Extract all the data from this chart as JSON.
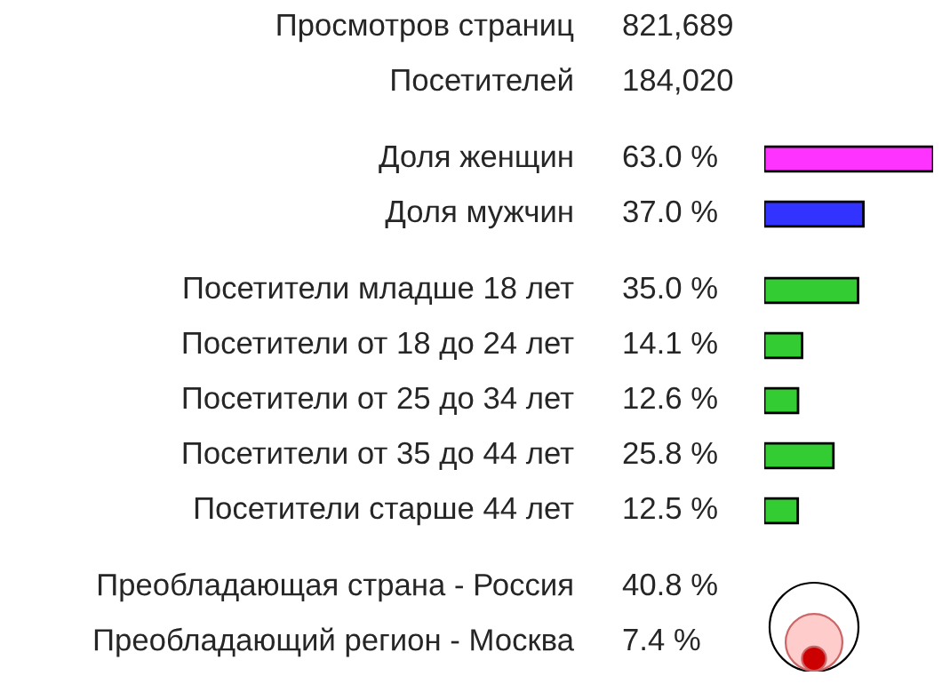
{
  "chart_data": [
    {
      "type": "other",
      "categories": [
        "Просмотров страниц",
        "Посетителей"
      ],
      "value_labels": [
        "821,689",
        "184,020"
      ]
    },
    {
      "type": "bar",
      "orientation": "horizontal",
      "categories": [
        "Доля женщин",
        "Доля мужчин"
      ],
      "values": [
        63.0,
        37.0
      ],
      "colors": [
        "#ff33ff",
        "#3333ff"
      ],
      "value_labels": [
        "63.0 %",
        "37.0 %"
      ]
    },
    {
      "type": "bar",
      "orientation": "horizontal",
      "categories": [
        "Посетители младше 18 лет",
        "Посетители от 18 до 24 лет",
        "Посетители от 25 до 34 лет",
        "Посетители от 35 до 44 лет",
        "Посетители старше 44 лет"
      ],
      "values": [
        35.0,
        14.1,
        12.6,
        25.8,
        12.5
      ],
      "colors": [
        "#33cc33",
        "#33cc33",
        "#33cc33",
        "#33cc33",
        "#33cc33"
      ],
      "value_labels": [
        "35.0 %",
        "14.1 %",
        "12.6 %",
        "25.8 %",
        "12.5 %"
      ]
    },
    {
      "type": "other",
      "categories": [
        "Преобладающая страна - Россия",
        "Преобладающий регион - Москва"
      ],
      "values": [
        40.8,
        7.4
      ],
      "colors": [
        "#ffcccc",
        "#cc0000"
      ],
      "value_labels": [
        "40.8 %",
        "7.4 %"
      ]
    }
  ]
}
